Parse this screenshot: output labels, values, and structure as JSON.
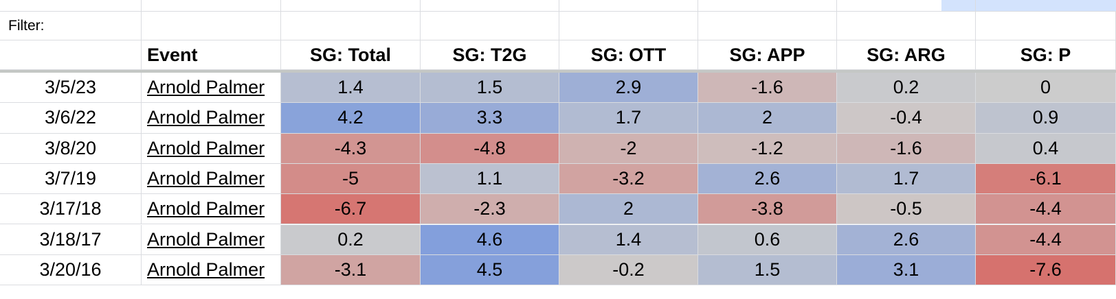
{
  "filter_label": "Filter:",
  "columns": [
    "Event",
    "SG: Total",
    "SG: T2G",
    "SG: OTT",
    "SG: APP",
    "SG: ARG",
    "SG: P"
  ],
  "rows": [
    {
      "date": "3/5/23",
      "event": "Arnold Palmer",
      "values": [
        "1.4",
        "1.5",
        "2.9",
        "-1.6",
        "0.2",
        "0"
      ]
    },
    {
      "date": "3/6/22",
      "event": "Arnold Palmer",
      "values": [
        "4.2",
        "3.3",
        "1.7",
        "2",
        "-0.4",
        "0.9"
      ]
    },
    {
      "date": "3/8/20",
      "event": "Arnold Palmer",
      "values": [
        "-4.3",
        "-4.8",
        "-2",
        "-1.2",
        "-1.6",
        "0.4"
      ]
    },
    {
      "date": "3/7/19",
      "event": "Arnold Palmer",
      "values": [
        "-5",
        "1.1",
        "-3.2",
        "2.6",
        "1.7",
        "-6.1"
      ]
    },
    {
      "date": "3/17/18",
      "event": "Arnold Palmer",
      "values": [
        "-6.7",
        "-2.3",
        "2",
        "-3.8",
        "-0.5",
        "-4.4"
      ]
    },
    {
      "date": "3/18/17",
      "event": "Arnold Palmer",
      "values": [
        "0.2",
        "4.6",
        "1.4",
        "0.6",
        "2.6",
        "-4.4"
      ]
    },
    {
      "date": "3/20/16",
      "event": "Arnold Palmer",
      "values": [
        "-3.1",
        "4.5",
        "-0.2",
        "1.5",
        "3.1",
        "-7.6"
      ]
    }
  ],
  "colors": {
    "grid": "#dadce0",
    "scale_negative": "#d6726e",
    "scale_neutral": "#cccccc",
    "scale_positive": "#5d87e4",
    "selected_column_hint": "#d3e3fd"
  }
}
